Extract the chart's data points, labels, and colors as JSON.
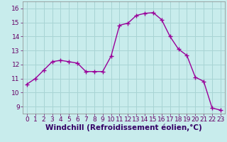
{
  "x": [
    0,
    1,
    2,
    3,
    4,
    5,
    6,
    7,
    8,
    9,
    10,
    11,
    12,
    13,
    14,
    15,
    16,
    17,
    18,
    19,
    20,
    21,
    22,
    23
  ],
  "y": [
    10.6,
    11.0,
    11.6,
    12.2,
    12.3,
    12.2,
    12.1,
    11.5,
    11.5,
    11.5,
    12.6,
    14.8,
    14.95,
    15.5,
    15.65,
    15.7,
    15.2,
    14.0,
    13.1,
    12.65,
    11.1,
    10.8,
    8.9,
    8.75
  ],
  "line_color": "#990099",
  "marker": "s",
  "marker_size": 2.0,
  "bg_color": "#c8ecec",
  "grid_color": "#a8d4d4",
  "xlabel": "Windchill (Refroidissement éolien,°C)",
  "xlim": [
    -0.5,
    23.5
  ],
  "ylim": [
    8.5,
    16.5
  ],
  "yticks": [
    9,
    10,
    11,
    12,
    13,
    14,
    15,
    16
  ],
  "xticks": [
    0,
    1,
    2,
    3,
    4,
    5,
    6,
    7,
    8,
    9,
    10,
    11,
    12,
    13,
    14,
    15,
    16,
    17,
    18,
    19,
    20,
    21,
    22,
    23
  ],
  "tick_fontsize": 6.5,
  "xlabel_fontsize": 7.5,
  "line_width": 1.0
}
